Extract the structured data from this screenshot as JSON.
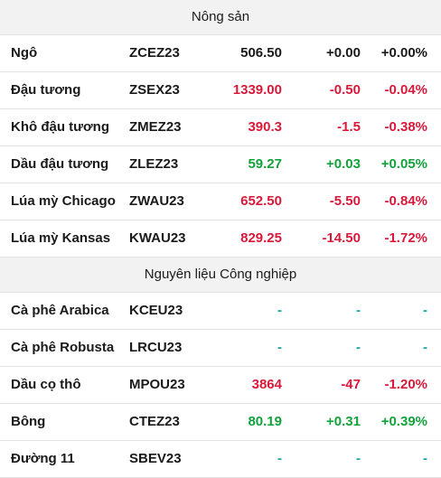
{
  "colors": {
    "up": "#13a23c",
    "down": "#d9193a",
    "flat": "#1a1a1a",
    "na": "#16a6a6",
    "header_bg": "#f2f2f2"
  },
  "sections": [
    {
      "title": "Nông sản",
      "rows": [
        {
          "name": "Ngô",
          "code": "ZCEZ23",
          "price": "506.50",
          "change": "+0.00",
          "pct": "+0.00%",
          "trend": "flat"
        },
        {
          "name": "Đậu tương",
          "code": "ZSEX23",
          "price": "1339.00",
          "change": "-0.50",
          "pct": "-0.04%",
          "trend": "down"
        },
        {
          "name": "Khô đậu tương",
          "code": "ZMEZ23",
          "price": "390.3",
          "change": "-1.5",
          "pct": "-0.38%",
          "trend": "down"
        },
        {
          "name": "Dầu đậu tương",
          "code": "ZLEZ23",
          "price": "59.27",
          "change": "+0.03",
          "pct": "+0.05%",
          "trend": "up"
        },
        {
          "name": "Lúa mỳ Chicago",
          "code": "ZWAU23",
          "price": "652.50",
          "change": "-5.50",
          "pct": "-0.84%",
          "trend": "down"
        },
        {
          "name": "Lúa mỳ Kansas",
          "code": "KWAU23",
          "price": "829.25",
          "change": "-14.50",
          "pct": "-1.72%",
          "trend": "down"
        }
      ]
    },
    {
      "title": "Nguyên liệu Công nghiệp",
      "rows": [
        {
          "name": "Cà phê Arabica",
          "code": "KCEU23",
          "price": "-",
          "change": "-",
          "pct": "-",
          "trend": "na"
        },
        {
          "name": "Cà phê Robusta",
          "code": "LRCU23",
          "price": "-",
          "change": "-",
          "pct": "-",
          "trend": "na"
        },
        {
          "name": "Dầu cọ thô",
          "code": "MPOU23",
          "price": "3864",
          "change": "-47",
          "pct": "-1.20%",
          "trend": "down"
        },
        {
          "name": "Bông",
          "code": "CTEZ23",
          "price": "80.19",
          "change": "+0.31",
          "pct": "+0.39%",
          "trend": "up"
        },
        {
          "name": "Đường 11",
          "code": "SBEV23",
          "price": "-",
          "change": "-",
          "pct": "-",
          "trend": "na"
        }
      ]
    }
  ]
}
